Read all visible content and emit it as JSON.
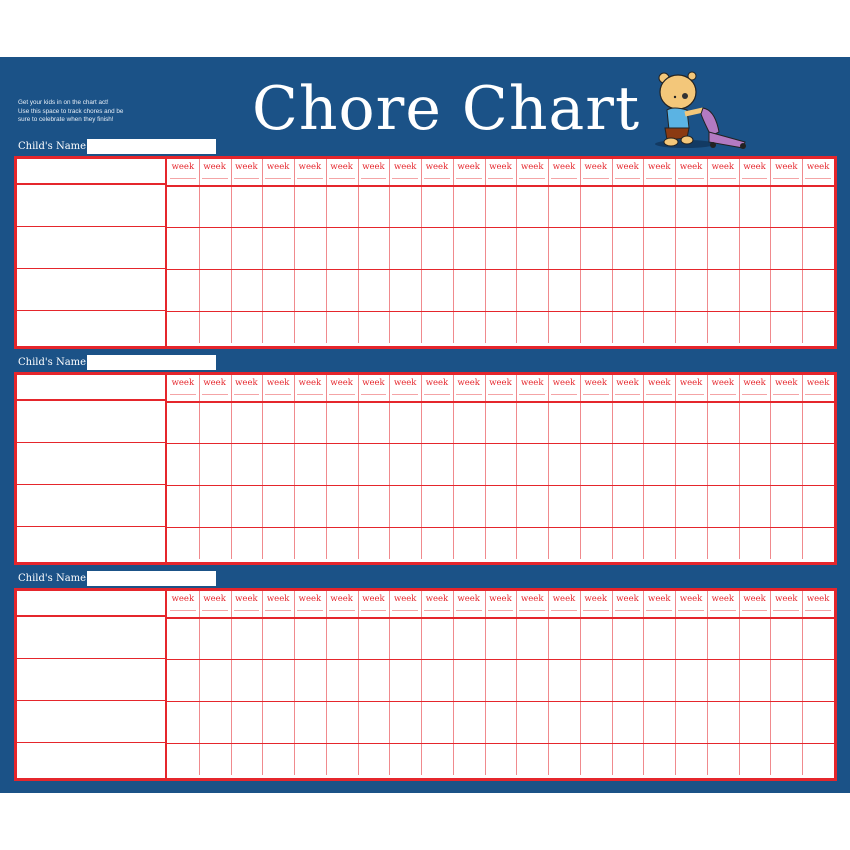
{
  "header": {
    "title": "Chore Chart",
    "intro_lines": [
      "Get your kids in on the chart act!",
      "Use this space to track chores and be",
      "sure to celebrate when they finish!"
    ],
    "illustration": "bear-vacuuming"
  },
  "colors": {
    "background": "#1b5287",
    "grid": "#e5262c",
    "title": "#ffffff"
  },
  "tables": [
    {
      "name_label": "Child's Name:",
      "name_value": "",
      "weeks": [
        "week",
        "week",
        "week",
        "week",
        "week",
        "week",
        "week",
        "week",
        "week",
        "week",
        "week",
        "week",
        "week",
        "week",
        "week",
        "week",
        "week",
        "week",
        "week",
        "week",
        "week"
      ],
      "chore_rows": 4
    },
    {
      "name_label": "Child's Name:",
      "name_value": "",
      "weeks": [
        "week",
        "week",
        "week",
        "week",
        "week",
        "week",
        "week",
        "week",
        "week",
        "week",
        "week",
        "week",
        "week",
        "week",
        "week",
        "week",
        "week",
        "week",
        "week",
        "week",
        "week"
      ],
      "chore_rows": 4
    },
    {
      "name_label": "Child's Name:",
      "name_value": "",
      "weeks": [
        "week",
        "week",
        "week",
        "week",
        "week",
        "week",
        "week",
        "week",
        "week",
        "week",
        "week",
        "week",
        "week",
        "week",
        "week",
        "week",
        "week",
        "week",
        "week",
        "week",
        "week"
      ],
      "chore_rows": 4
    }
  ]
}
